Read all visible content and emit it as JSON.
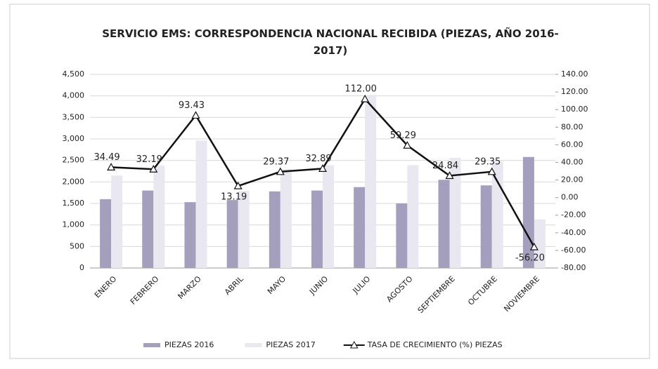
{
  "chart_data": {
    "type": "bar_line",
    "title": "SERVICIO EMS: CORRESPONDENCIA NACIONAL RECIBIDA (PIEZAS, AÑO 2016-2017)",
    "categories": [
      "ENERO",
      "FEBRERO",
      "MARZO",
      "ABRIL",
      "MAYO",
      "JUNIO",
      "JULIO",
      "AGOSTO",
      "SEPTIEMBRE",
      "OCTUBRE",
      "NOVIEMBRE"
    ],
    "series": [
      {
        "name": "PIEZAS 2016",
        "type": "bar",
        "color": "#a49fbd",
        "values": [
          1600,
          1800,
          1530,
          1580,
          1780,
          1800,
          1880,
          1500,
          2050,
          1920,
          2580
        ]
      },
      {
        "name": "PIEZAS 2017",
        "type": "bar",
        "color": "#e9e7f0",
        "values": [
          2150,
          2380,
          2960,
          1790,
          2300,
          2390,
          3990,
          2390,
          2560,
          2480,
          1130
        ]
      },
      {
        "name": "TASA DE CRECIMIENTO (%) PIEZAS",
        "type": "line",
        "axis": "y2",
        "color": "#111111",
        "values": [
          34.49,
          32.19,
          93.43,
          13.19,
          29.37,
          32.89,
          112.0,
          59.29,
          24.84,
          29.35,
          -56.2
        ],
        "value_labels": [
          "34.49",
          "32.19",
          "93.43",
          "13.19",
          "29.37",
          "32.89",
          "112.00",
          "59.29",
          "24.84",
          "29.35",
          "-56.20"
        ]
      }
    ],
    "ylim": [
      0,
      4500
    ],
    "yticks": [
      {
        "value": 4500,
        "label": "4,500"
      },
      {
        "value": 4000,
        "label": "4,000"
      },
      {
        "value": 3500,
        "label": "3,500"
      },
      {
        "value": 3000,
        "label": "3,000"
      },
      {
        "value": 2500,
        "label": "2,500"
      },
      {
        "value": 2000,
        "label": "2,000"
      },
      {
        "value": 1500,
        "label": "1,500"
      },
      {
        "value": 1000,
        "label": "1,000"
      },
      500,
      0
    ],
    "y2lim": [
      -80,
      140
    ],
    "y2ticks": [
      {
        "value": 140,
        "label": "140.00"
      },
      {
        "value": 120,
        "label": "120.00"
      },
      {
        "value": 100,
        "label": "100.00"
      },
      {
        "value": 80,
        "label": "80.00"
      },
      {
        "value": 60,
        "label": "60.00"
      },
      {
        "value": 40,
        "label": "40.00"
      },
      {
        "value": 20,
        "label": "20.00"
      },
      {
        "value": 0,
        "label": "0.00"
      },
      {
        "value": -20,
        "label": "-20.00"
      },
      {
        "value": -40,
        "label": "-40.00"
      },
      {
        "value": -60,
        "label": "-60.00"
      },
      {
        "value": -80,
        "label": "-80.00"
      }
    ],
    "grid": true,
    "legend": "bottom"
  }
}
